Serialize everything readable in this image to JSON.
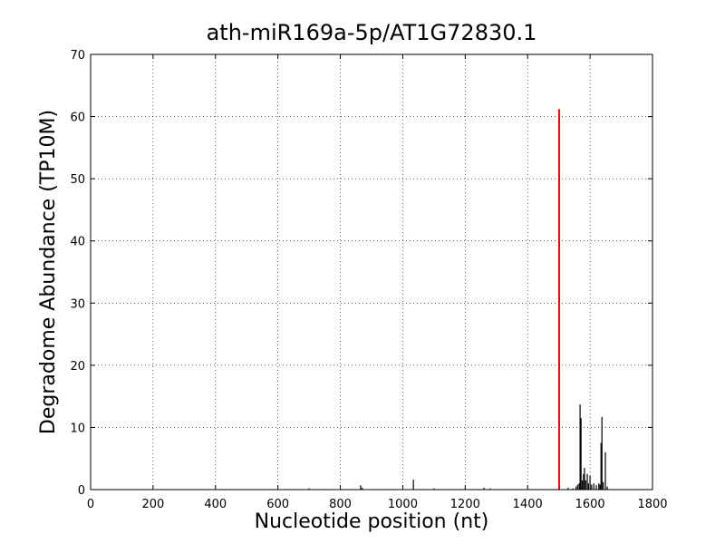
{
  "chart_data": {
    "type": "stem",
    "title": "ath-miR169a-5p/AT1G72830.1",
    "x_label": "Nucleotide position (nt)",
    "y_label": "Degradome Abundance (TP10M)",
    "xlim": [
      0,
      1800
    ],
    "xticks": [
      0,
      200,
      400,
      600,
      800,
      1000,
      1200,
      1400,
      1600,
      1800
    ],
    "ylim": [
      0,
      70
    ],
    "yticks": [
      0,
      10,
      20,
      30,
      40,
      50,
      60,
      70
    ],
    "grid": true,
    "series": [
      {
        "color": "#000000",
        "x": [
          700,
          865,
          870,
          1034,
          1100,
          1200,
          1260,
          1280,
          1530,
          1545,
          1555,
          1560,
          1565,
          1568,
          1571,
          1575,
          1579,
          1582,
          1586,
          1591,
          1595,
          1600,
          1605,
          1612,
          1620,
          1628,
          1632,
          1635,
          1638,
          1642,
          1649,
          1655
        ],
        "values": [
          0.2,
          0.7,
          0.3,
          1.6,
          0.2,
          0.2,
          0.3,
          0.2,
          0.3,
          0.2,
          0.5,
          0.8,
          1.0,
          13.7,
          11.5,
          1.5,
          2.5,
          3.5,
          1.5,
          2.5,
          1.0,
          2.2,
          0.8,
          1.0,
          0.7,
          1.0,
          0.8,
          7.5,
          11.7,
          1.2,
          6.0,
          0.5
        ]
      },
      {
        "color": "#ff0000",
        "x": [
          1501
        ],
        "values": [
          61.2
        ]
      }
    ]
  }
}
